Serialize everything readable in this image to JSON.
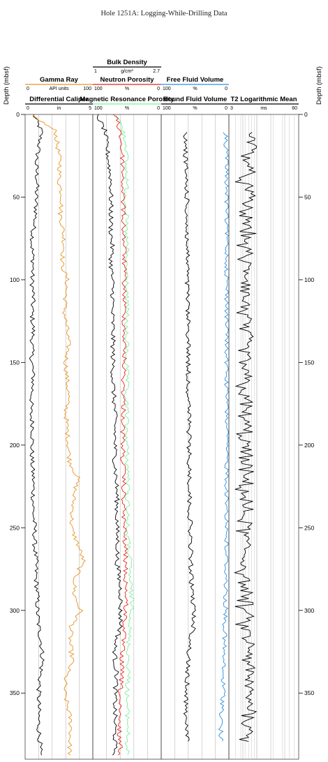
{
  "title": "Hole 1251A: Logging-While-Drilling Data",
  "depth_axis": {
    "label": "Depth (mbsf)",
    "ticks": [
      "0",
      "50",
      "100",
      "150",
      "200",
      "250",
      "300",
      "350"
    ],
    "range": [
      0,
      390
    ]
  },
  "tracks": {
    "track1": {
      "gamma_ray": {
        "name": "Gamma Ray",
        "unit": "API units",
        "min": "0",
        "max": "100",
        "color": "#e89320"
      },
      "caliper": {
        "name": "Differential Caliper",
        "unit": "in",
        "min": "0",
        "max": "5",
        "color": "#000000"
      }
    },
    "track2": {
      "bulk_density": {
        "name": "Bulk Density",
        "unit": "g/cm³",
        "min": "1",
        "max": "2.7",
        "color": "#000000"
      },
      "neutron_porosity": {
        "name": "Neutron Porosity",
        "unit": "%",
        "min": "100",
        "max": "0",
        "color": "#e8231c"
      },
      "mr_porosity": {
        "name": "Magnetic Resonance Porosity",
        "unit": "%",
        "min": "100",
        "max": "0",
        "color": "#79f09a"
      }
    },
    "track3": {
      "free_fluid": {
        "name": "Free Fluid Volume",
        "unit": "%",
        "min": "100",
        "max": "0",
        "color": "#2b8fe0"
      },
      "bound_fluid": {
        "name": "Bound Fluid Volume",
        "unit": "%",
        "min": "100",
        "max": "0",
        "color": "#000000"
      }
    },
    "track4": {
      "t2": {
        "name": "T2 Logarithmic Mean",
        "unit": "ms",
        "min": "3",
        "max": "60",
        "color": "#000000"
      }
    }
  },
  "chart_data": {
    "type": "line",
    "title": "Hole 1251A: Logging-While-Drilling Data",
    "ylabel": "Depth (mbsf)",
    "ylim": [
      0,
      390
    ],
    "y_inverted": true,
    "depth": [
      0,
      10,
      20,
      30,
      40,
      50,
      60,
      70,
      80,
      90,
      100,
      110,
      120,
      130,
      140,
      150,
      160,
      170,
      180,
      190,
      200,
      210,
      220,
      230,
      240,
      250,
      260,
      270,
      280,
      290,
      300,
      310,
      320,
      330,
      340,
      350,
      360,
      370,
      380,
      388
    ],
    "series": [
      {
        "name": "Gamma Ray",
        "track": 1,
        "unit": "API units",
        "range": [
          0,
          100
        ],
        "values": [
          8,
          45,
          48,
          52,
          50,
          55,
          52,
          56,
          58,
          54,
          62,
          60,
          58,
          62,
          64,
          60,
          62,
          64,
          60,
          62,
          64,
          66,
          78,
          72,
          70,
          68,
          78,
          86,
          74,
          72,
          82,
          68,
          66,
          70,
          60,
          58,
          64,
          68,
          66,
          66
        ]
      },
      {
        "name": "Differential Caliper",
        "track": 1,
        "unit": "in",
        "range": [
          0,
          5
        ],
        "values": [
          0.6,
          1.2,
          1.0,
          0.8,
          0.9,
          0.8,
          0.8,
          0.6,
          0.5,
          0.6,
          0.5,
          0.6,
          0.5,
          0.6,
          0.5,
          0.5,
          0.6,
          0.5,
          0.4,
          0.6,
          0.5,
          0.5,
          0.6,
          0.6,
          0.6,
          0.7,
          0.7,
          0.8,
          0.8,
          0.9,
          0.9,
          1.0,
          1.2,
          1.3,
          1.1,
          1.0,
          1.0,
          1.0,
          1.1,
          1.1
        ]
      },
      {
        "name": "Bulk Density",
        "track": 2,
        "unit": "g/cm³",
        "range": [
          1,
          2.7
        ],
        "values": [
          1.1,
          1.3,
          1.35,
          1.4,
          1.45,
          1.45,
          1.45,
          1.45,
          1.48,
          1.45,
          1.48,
          1.5,
          1.48,
          1.5,
          1.5,
          1.5,
          1.5,
          1.52,
          1.55,
          1.55,
          1.55,
          1.55,
          1.58,
          1.6,
          1.6,
          1.6,
          1.62,
          1.6,
          1.65,
          1.7,
          1.68,
          1.7,
          1.55,
          1.55,
          1.6,
          1.55,
          1.55,
          1.55,
          1.55,
          1.55
        ]
      },
      {
        "name": "Neutron Porosity",
        "track": 2,
        "unit": "%",
        "range": [
          100,
          0
        ],
        "values": [
          68,
          60,
          58,
          56,
          56,
          56,
          55,
          55,
          54,
          54,
          54,
          54,
          54,
          54,
          54,
          54,
          55,
          55,
          55,
          56,
          56,
          56,
          55,
          55,
          55,
          54,
          53,
          52,
          52,
          51,
          52,
          54,
          56,
          58,
          58,
          60,
          62,
          62,
          60,
          60
        ]
      },
      {
        "name": "Magnetic Resonance Porosity",
        "track": 2,
        "unit": "%",
        "range": [
          100,
          0
        ],
        "values": [
          64,
          56,
          50,
          52,
          50,
          52,
          51,
          52,
          50,
          52,
          50,
          51,
          50,
          52,
          50,
          51,
          50,
          52,
          50,
          51,
          50,
          50,
          48,
          50,
          48,
          50,
          48,
          46,
          46,
          44,
          42,
          46,
          48,
          48,
          48,
          50,
          50,
          48,
          50,
          50
        ]
      },
      {
        "name": "Free Fluid Volume",
        "track": 3,
        "unit": "%",
        "range": [
          100,
          0
        ],
        "values": [
          null,
          5,
          4,
          3,
          3,
          3,
          3,
          3,
          3,
          3,
          3,
          3,
          3,
          3,
          3,
          3,
          3,
          3,
          3,
          3,
          3,
          3,
          3,
          3,
          3,
          3,
          4,
          4,
          4,
          5,
          5,
          6,
          7,
          8,
          9,
          8,
          10,
          12,
          12,
          null
        ]
      },
      {
        "name": "Bound Fluid Volume",
        "track": 3,
        "unit": "%",
        "range": [
          100,
          0
        ],
        "values": [
          null,
          65,
          64,
          64,
          63,
          62,
          62,
          62,
          62,
          61,
          62,
          61,
          61,
          60,
          60,
          60,
          60,
          60,
          59,
          59,
          59,
          59,
          58,
          58,
          58,
          57,
          57,
          56,
          56,
          54,
          52,
          52,
          58,
          60,
          62,
          62,
          64,
          62,
          60,
          null
        ]
      },
      {
        "name": "T2 Logarithmic Mean",
        "track": 4,
        "unit": "ms",
        "range": [
          3,
          60
        ],
        "values": [
          null,
          9,
          8,
          7,
          6,
          7,
          6,
          7,
          6,
          6,
          7,
          6,
          6,
          6,
          6,
          6,
          6,
          6,
          6,
          6,
          6,
          6,
          6,
          6,
          6,
          6,
          6,
          6,
          6,
          6,
          6,
          6,
          7,
          7,
          7,
          7,
          8,
          7,
          7,
          null
        ]
      }
    ]
  }
}
